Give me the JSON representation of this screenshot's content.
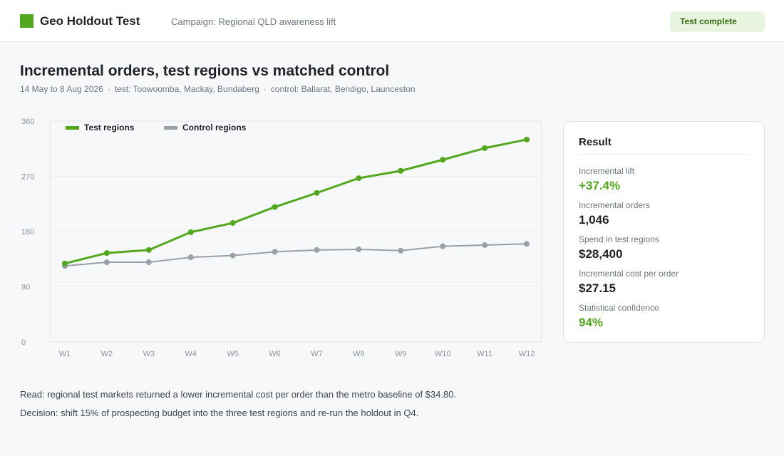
{
  "header": {
    "app_title": "Geo Holdout Test",
    "campaign": "Campaign: Regional QLD awareness lift",
    "status": "Test complete"
  },
  "page": {
    "title": "Incremental orders, test regions vs matched control",
    "date_range": "14 May to 8 Aug 2026",
    "test_regions": "test: Toowoomba, Mackay, Bundaberg",
    "control_regions": "control: Ballarat, Bendigo, Launceston",
    "separator": "·"
  },
  "colors": {
    "brand": "#52a81c",
    "test_series": "#52a81c",
    "control_series": "#9aa0a8",
    "badge_bg": "#e9f5df"
  },
  "chart_data": {
    "type": "line",
    "x": [
      "W1",
      "W2",
      "W3",
      "W4",
      "W5",
      "W6",
      "W7",
      "W8",
      "W9",
      "W10",
      "W11",
      "W12"
    ],
    "ylim": [
      0,
      360
    ],
    "yticks": [
      0,
      90,
      180,
      270,
      360
    ],
    "grid": true,
    "legend_position": "top-left",
    "series": [
      {
        "name": "Test regions",
        "color": "#52a81c",
        "values": [
          128,
          145,
          150,
          179,
          194,
          220,
          243,
          267,
          279,
          297,
          316,
          330
        ]
      },
      {
        "name": "Control regions",
        "color": "#9aa0a8",
        "values": [
          124,
          130,
          130,
          138,
          141,
          147,
          150,
          151,
          149,
          156,
          158,
          160
        ]
      }
    ]
  },
  "result": {
    "title": "Result",
    "metrics": [
      {
        "label": "Incremental lift",
        "value": "+37.4%",
        "highlight": true
      },
      {
        "label": "Incremental orders",
        "value": "1,046",
        "highlight": false
      },
      {
        "label": "Spend in test regions",
        "value": "$28,400",
        "highlight": false
      },
      {
        "label": "Incremental cost per order",
        "value": "$27.15",
        "highlight": false
      },
      {
        "label": "Statistical confidence",
        "value": "94%",
        "highlight": true
      }
    ]
  },
  "notes": {
    "read": "Read: regional test markets returned a lower incremental cost per order than the metro baseline of $34.80.",
    "decision": "Decision: shift 15% of prospecting budget into the three test regions and re-run the holdout in Q4."
  }
}
